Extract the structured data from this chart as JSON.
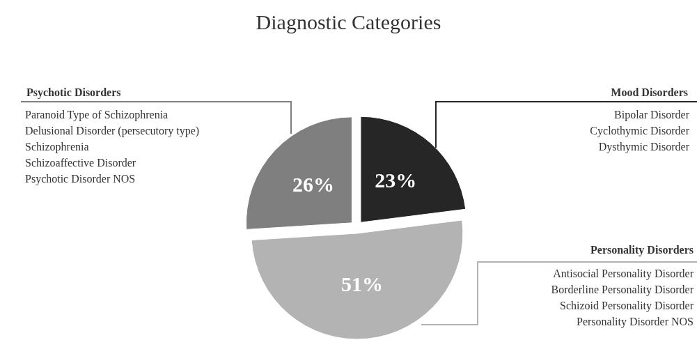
{
  "chart_data": {
    "type": "pie",
    "title": "Diagnostic Categories",
    "categories": [
      "Mood Disorders",
      "Personality Disorders",
      "Psychotic Disorders"
    ],
    "values": [
      23,
      51,
      26
    ],
    "value_labels": [
      "23%",
      "51%",
      "26%"
    ],
    "colors": [
      "#262626",
      "#b3b3b3",
      "#7f7f7f"
    ],
    "annotations": [
      "Bipolar Disorder\nCyclothymic Disorder\nDysthymic Disorder",
      "Antisocial Personality Disorder\nBorderline Personality Disorder\nSchizoid Personality Disorder\nPersonality Disorder NOS",
      "Paranoid Type of Schizophrenia\nDelusional Disorder (persecutory type)\nSchizophrenia\nSchizoaffective Disorder\nPsychotic Disorder NOS"
    ]
  }
}
